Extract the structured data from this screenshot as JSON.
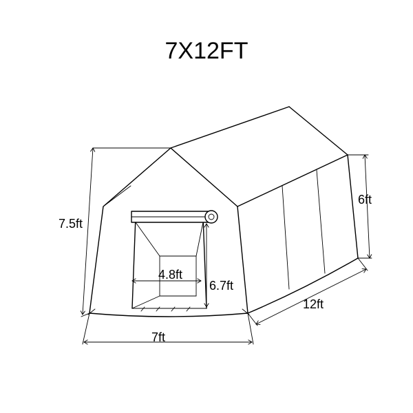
{
  "diagram": {
    "type": "infographic",
    "title": "7X12FT",
    "title_fontsize": 34,
    "label_fontsize": 18,
    "stroke_color": "#000000",
    "stroke_width": 1.4,
    "thin_stroke_width": 0.9,
    "background_color": "#ffffff",
    "dimensions": {
      "total_height": "7.5ft",
      "width": "7ft",
      "door_width": "4.8ft",
      "door_height": "6.7ft",
      "length": "12ft",
      "side_height": "6ft"
    },
    "arrow_size": 6
  }
}
